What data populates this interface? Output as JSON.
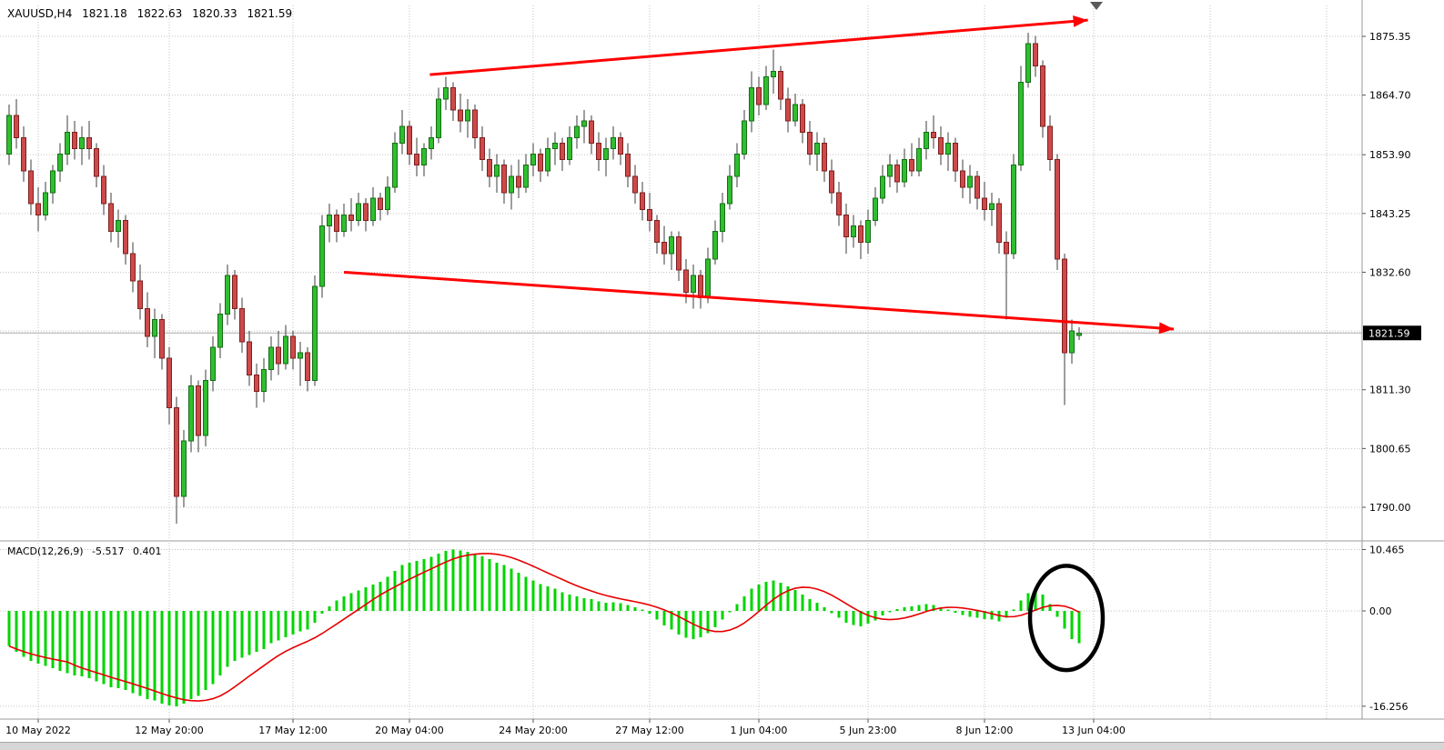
{
  "header": {
    "symbol_period": "XAUUSD,H4",
    "open": "1821.18",
    "high": "1822.63",
    "low": "1820.33",
    "close": "1821.59"
  },
  "colors": {
    "bull": "#2fbe2f",
    "bull_border": "#166e16",
    "bear": "#cd4a4a",
    "bear_border": "#7e2020",
    "wick": "#3c3c3c",
    "macd_hist": "#00d400",
    "macd_signal": "#e60000",
    "trendline": "#ff0000",
    "annotation": "#000000",
    "grid": "#c3c3c3",
    "bid_line": "#a9a9a9",
    "axis_text": "#000000",
    "bid_box_bg": "#000000",
    "bid_box_text": "#ffffff"
  },
  "chart_data": {
    "type": "candlestick",
    "title": "XAUUSD,H4",
    "symbol": "XAUUSD",
    "timeframe": "H4",
    "grid": "dotted",
    "price_visible_range": [
      1784,
      1881
    ],
    "macd_visible_range": [
      -18.3,
      11.6
    ],
    "last_ohlc": {
      "open": 1821.18,
      "high": 1822.63,
      "low": 1820.33,
      "close": 1821.59
    },
    "price_axis": {
      "labels": [
        "1875.35",
        "1864.70",
        "1853.90",
        "1843.25",
        "1832.60",
        "1811.30",
        "1800.65",
        "1790.00"
      ],
      "grid_extra": [
        1821.95
      ],
      "bid": "1821.59",
      "bid_value": 1821.59
    },
    "time_axis": {
      "labels": [
        {
          "label": "10 May 2022",
          "i": 4
        },
        {
          "label": "12 May 20:00",
          "i": 22
        },
        {
          "label": "17 May 12:00",
          "i": 39
        },
        {
          "label": "20 May 04:00",
          "i": 55
        },
        {
          "label": "24 May 20:00",
          "i": 72
        },
        {
          "label": "27 May 12:00",
          "i": 88
        },
        {
          "label": "1 Jun 04:00",
          "i": 103
        },
        {
          "label": "5 Jun 23:00",
          "i": 118
        },
        {
          "label": "8 Jun 12:00",
          "i": 134
        },
        {
          "label": "13 Jun 04:00",
          "i": 149
        }
      ],
      "grid_extra_i": [
        165,
        181
      ]
    },
    "candles": [
      [
        1854,
        1863,
        1852,
        1861
      ],
      [
        1861,
        1864,
        1855,
        1857
      ],
      [
        1857,
        1859,
        1849,
        1851
      ],
      [
        1851,
        1853,
        1843,
        1845
      ],
      [
        1845,
        1848,
        1840,
        1843
      ],
      [
        1843,
        1849,
        1842,
        1847
      ],
      [
        1847,
        1852,
        1845,
        1851
      ],
      [
        1851,
        1856,
        1849,
        1854
      ],
      [
        1854,
        1861,
        1852,
        1858
      ],
      [
        1858,
        1860,
        1853,
        1855
      ],
      [
        1855,
        1859,
        1852,
        1857
      ],
      [
        1857,
        1860,
        1853,
        1855
      ],
      [
        1855,
        1856,
        1848,
        1850
      ],
      [
        1850,
        1852,
        1843,
        1845
      ],
      [
        1845,
        1847,
        1838,
        1840
      ],
      [
        1840,
        1844,
        1837,
        1842
      ],
      [
        1842,
        1843,
        1834,
        1836
      ],
      [
        1836,
        1838,
        1829,
        1831
      ],
      [
        1831,
        1834,
        1824,
        1826
      ],
      [
        1826,
        1829,
        1819,
        1821
      ],
      [
        1821,
        1826,
        1817,
        1824
      ],
      [
        1824,
        1825,
        1815,
        1817
      ],
      [
        1817,
        1819,
        1805,
        1808
      ],
      [
        1808,
        1810,
        1787,
        1792
      ],
      [
        1792,
        1804,
        1790,
        1802
      ],
      [
        1802,
        1814,
        1800,
        1812
      ],
      [
        1812,
        1813,
        1800,
        1803
      ],
      [
        1803,
        1815,
        1801,
        1813
      ],
      [
        1813,
        1821,
        1811,
        1819
      ],
      [
        1819,
        1827,
        1817,
        1825
      ],
      [
        1825,
        1834,
        1823,
        1832
      ],
      [
        1832,
        1833,
        1824,
        1826
      ],
      [
        1826,
        1828,
        1818,
        1820
      ],
      [
        1820,
        1822,
        1812,
        1814
      ],
      [
        1814,
        1816,
        1808,
        1811
      ],
      [
        1811,
        1817,
        1809,
        1815
      ],
      [
        1815,
        1821,
        1813,
        1819
      ],
      [
        1819,
        1822,
        1814,
        1816
      ],
      [
        1816,
        1823,
        1815,
        1821
      ],
      [
        1821,
        1822,
        1815,
        1817
      ],
      [
        1817,
        1820,
        1812,
        1818
      ],
      [
        1818,
        1819,
        1811,
        1813
      ],
      [
        1813,
        1832,
        1812,
        1830
      ],
      [
        1830,
        1843,
        1828,
        1841
      ],
      [
        1841,
        1845,
        1838,
        1843
      ],
      [
        1843,
        1844,
        1838,
        1840
      ],
      [
        1840,
        1845,
        1839,
        1843
      ],
      [
        1843,
        1846,
        1840,
        1842
      ],
      [
        1842,
        1847,
        1841,
        1845
      ],
      [
        1845,
        1846,
        1840,
        1842
      ],
      [
        1842,
        1848,
        1841,
        1846
      ],
      [
        1846,
        1847,
        1842,
        1844
      ],
      [
        1844,
        1850,
        1843,
        1848
      ],
      [
        1848,
        1858,
        1847,
        1856
      ],
      [
        1856,
        1862,
        1854,
        1859
      ],
      [
        1859,
        1860,
        1852,
        1854
      ],
      [
        1854,
        1857,
        1850,
        1852
      ],
      [
        1852,
        1856,
        1850,
        1855
      ],
      [
        1855,
        1859,
        1853,
        1857
      ],
      [
        1857,
        1866,
        1856,
        1864
      ],
      [
        1864,
        1868,
        1862,
        1866
      ],
      [
        1866,
        1867,
        1860,
        1862
      ],
      [
        1862,
        1865,
        1858,
        1860
      ],
      [
        1860,
        1864,
        1857,
        1862
      ],
      [
        1862,
        1863,
        1855,
        1857
      ],
      [
        1857,
        1859,
        1851,
        1853
      ],
      [
        1853,
        1855,
        1848,
        1850
      ],
      [
        1850,
        1854,
        1847,
        1852
      ],
      [
        1852,
        1853,
        1845,
        1847
      ],
      [
        1847,
        1852,
        1844,
        1850
      ],
      [
        1850,
        1853,
        1846,
        1848
      ],
      [
        1848,
        1854,
        1847,
        1852
      ],
      [
        1852,
        1856,
        1850,
        1854
      ],
      [
        1854,
        1855,
        1849,
        1851
      ],
      [
        1851,
        1857,
        1850,
        1855
      ],
      [
        1855,
        1858,
        1852,
        1856
      ],
      [
        1856,
        1857,
        1851,
        1853
      ],
      [
        1853,
        1859,
        1852,
        1857
      ],
      [
        1857,
        1861,
        1855,
        1859
      ],
      [
        1859,
        1862,
        1856,
        1860
      ],
      [
        1860,
        1861,
        1854,
        1856
      ],
      [
        1856,
        1858,
        1851,
        1853
      ],
      [
        1853,
        1857,
        1850,
        1855
      ],
      [
        1855,
        1859,
        1853,
        1857
      ],
      [
        1857,
        1858,
        1852,
        1854
      ],
      [
        1854,
        1856,
        1848,
        1850
      ],
      [
        1850,
        1852,
        1845,
        1847
      ],
      [
        1847,
        1849,
        1842,
        1844
      ],
      [
        1844,
        1847,
        1840,
        1842
      ],
      [
        1842,
        1843,
        1836,
        1838
      ],
      [
        1838,
        1841,
        1834,
        1836
      ],
      [
        1836,
        1840,
        1833,
        1839
      ],
      [
        1839,
        1840,
        1831,
        1833
      ],
      [
        1833,
        1835,
        1827,
        1829
      ],
      [
        1829,
        1834,
        1826,
        1832
      ],
      [
        1832,
        1833,
        1826,
        1828
      ],
      [
        1828,
        1837,
        1827,
        1835
      ],
      [
        1835,
        1842,
        1834,
        1840
      ],
      [
        1840,
        1847,
        1838,
        1845
      ],
      [
        1845,
        1852,
        1844,
        1850
      ],
      [
        1850,
        1856,
        1848,
        1854
      ],
      [
        1854,
        1862,
        1853,
        1860
      ],
      [
        1860,
        1869,
        1858,
        1866
      ],
      [
        1866,
        1868,
        1861,
        1863
      ],
      [
        1863,
        1870,
        1862,
        1868
      ],
      [
        1868,
        1873,
        1865,
        1869
      ],
      [
        1869,
        1870,
        1862,
        1864
      ],
      [
        1864,
        1866,
        1858,
        1860
      ],
      [
        1860,
        1865,
        1859,
        1863
      ],
      [
        1863,
        1864,
        1856,
        1858
      ],
      [
        1858,
        1860,
        1852,
        1854
      ],
      [
        1854,
        1858,
        1851,
        1856
      ],
      [
        1856,
        1857,
        1849,
        1851
      ],
      [
        1851,
        1853,
        1845,
        1847
      ],
      [
        1847,
        1849,
        1841,
        1843
      ],
      [
        1843,
        1845,
        1836,
        1839
      ],
      [
        1839,
        1843,
        1837,
        1841
      ],
      [
        1841,
        1842,
        1835,
        1838
      ],
      [
        1838,
        1844,
        1836,
        1842
      ],
      [
        1842,
        1848,
        1841,
        1846
      ],
      [
        1846,
        1852,
        1845,
        1850
      ],
      [
        1850,
        1854,
        1848,
        1852
      ],
      [
        1852,
        1853,
        1847,
        1849
      ],
      [
        1849,
        1855,
        1848,
        1853
      ],
      [
        1853,
        1856,
        1850,
        1851
      ],
      [
        1851,
        1857,
        1850,
        1855
      ],
      [
        1855,
        1860,
        1853,
        1858
      ],
      [
        1858,
        1861,
        1855,
        1857
      ],
      [
        1857,
        1859,
        1852,
        1854
      ],
      [
        1854,
        1858,
        1851,
        1856
      ],
      [
        1856,
        1857,
        1849,
        1851
      ],
      [
        1851,
        1853,
        1846,
        1848
      ],
      [
        1848,
        1852,
        1845,
        1850
      ],
      [
        1850,
        1851,
        1844,
        1846
      ],
      [
        1846,
        1849,
        1842,
        1844
      ],
      [
        1844,
        1847,
        1841,
        1845
      ],
      [
        1845,
        1846,
        1836,
        1838
      ],
      [
        1838,
        1840,
        1824,
        1836
      ],
      [
        1836,
        1854,
        1835,
        1852
      ],
      [
        1852,
        1870,
        1851,
        1867
      ],
      [
        1867,
        1876,
        1866,
        1874
      ],
      [
        1874,
        1875.4,
        1868,
        1870
      ],
      [
        1870,
        1871,
        1857,
        1859
      ],
      [
        1859,
        1861,
        1851,
        1853
      ],
      [
        1853,
        1854,
        1833,
        1835
      ],
      [
        1835,
        1836,
        1808.5,
        1818
      ],
      [
        1818,
        1824,
        1816,
        1822
      ],
      [
        1821.18,
        1822.63,
        1820.33,
        1821.59
      ]
    ],
    "macd": {
      "label": "MACD(12,26,9)",
      "main_value": "-5.517",
      "signal_value": "0.401",
      "signal_period": 9,
      "axis_labels": [
        {
          "v": 10.465,
          "text": "10.465"
        },
        {
          "v": 0,
          "text": "0.00"
        },
        {
          "v": -16.256,
          "text": "-16.256"
        }
      ],
      "histogram": [
        -6,
        -7,
        -7.8,
        -8.5,
        -9,
        -9.4,
        -9.8,
        -10.2,
        -10.6,
        -11,
        -11.2,
        -11.5,
        -12,
        -12.5,
        -13,
        -13.2,
        -13.5,
        -14,
        -14.5,
        -15,
        -15.3,
        -15.8,
        -16.1,
        -16.256,
        -15.8,
        -15,
        -14.5,
        -13.5,
        -12.5,
        -11,
        -9.5,
        -8.5,
        -8,
        -7.5,
        -7,
        -6.5,
        -5.5,
        -5,
        -4.5,
        -4,
        -3.5,
        -3.2,
        -2,
        -0.5,
        0.8,
        1.8,
        2.5,
        3,
        3.5,
        4,
        4.5,
        5,
        5.8,
        6.8,
        7.8,
        8.2,
        8.5,
        8.8,
        9.2,
        9.8,
        10.2,
        10.465,
        10.3,
        10.1,
        9.8,
        9.3,
        8.8,
        8.2,
        7.8,
        7.2,
        6.5,
        5.8,
        5.2,
        4.6,
        4.2,
        3.8,
        3.2,
        2.8,
        2.5,
        2.2,
        2,
        1.6,
        1.4,
        1.5,
        1.3,
        1,
        0.6,
        0.2,
        -0.5,
        -1.5,
        -2.5,
        -3.2,
        -4,
        -4.6,
        -4.8,
        -4.5,
        -3.8,
        -2.8,
        -1.5,
        -0.2,
        1.2,
        2.5,
        3.8,
        4.5,
        5,
        5.2,
        4.8,
        4.2,
        3.6,
        2.8,
        2,
        1.4,
        0.6,
        -0.4,
        -1.2,
        -2,
        -2.4,
        -2.6,
        -2.2,
        -1.6,
        -0.8,
        -0.2,
        0.3,
        0.6,
        0.8,
        1,
        1.2,
        1,
        0.6,
        0.2,
        -0.3,
        -0.7,
        -1,
        -1.2,
        -1.4,
        -1.5,
        -1.8,
        -1.2,
        0.2,
        1.8,
        3,
        3.5,
        2.8,
        1.2,
        -1,
        -3,
        -4.8,
        -5.517
      ]
    },
    "annotations": {
      "trendlines": [
        {
          "i1": 57.8,
          "p1": 1868.4,
          "i2": 148.2,
          "p2": 1878.3
        },
        {
          "i1": 46,
          "p1": 1832.6,
          "i2": 160,
          "p2": 1822.3
        }
      ],
      "ellipse": {
        "panel": "macd",
        "center_i": 145.25,
        "center_v": -1.2,
        "radius_i": 5,
        "radius_v": 8.9
      }
    }
  }
}
